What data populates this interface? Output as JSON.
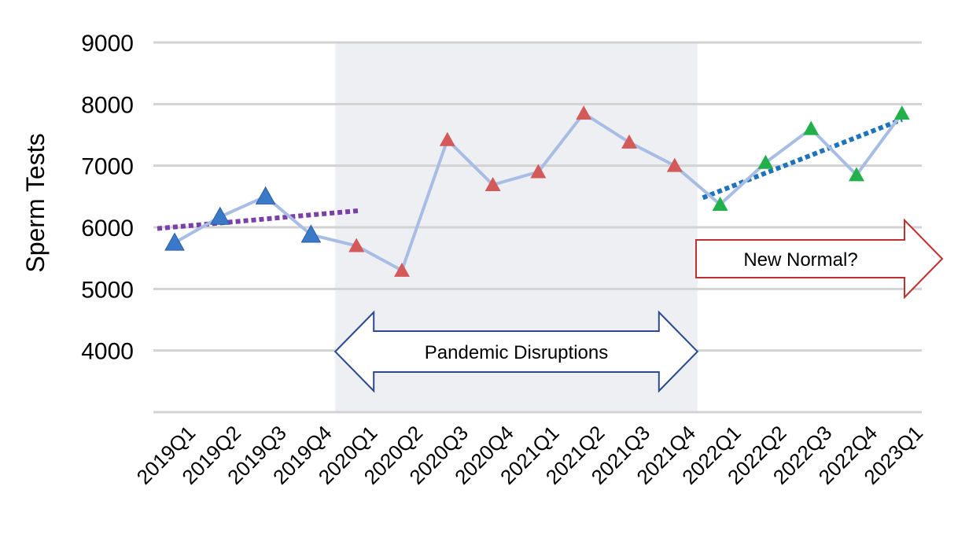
{
  "chart_data": {
    "type": "line",
    "title": "",
    "xlabel": "",
    "ylabel": "Sperm Tests",
    "ylim": [
      3000,
      9000
    ],
    "yticks": [
      4000,
      5000,
      6000,
      7000,
      8000,
      9000
    ],
    "grid": true,
    "categories": [
      "2019Q1",
      "2019Q2",
      "2019Q3",
      "2019Q4",
      "2020Q1",
      "2020Q2",
      "2020Q3",
      "2020Q4",
      "2021Q1",
      "2021Q2",
      "2021Q3",
      "2021Q4",
      "2022Q1",
      "2022Q2",
      "2022Q3",
      "2022Q4",
      "2023Q1"
    ],
    "values": [
      5750,
      6170,
      6500,
      5880,
      5700,
      5300,
      7420,
      6690,
      6900,
      7850,
      7380,
      7000,
      6370,
      7050,
      7600,
      6850,
      7850
    ],
    "colors": {
      "line": "#a8bde3",
      "pre_pandemic_marker": "#3a78c8",
      "pandemic_marker": "#d45a5a",
      "post_pandemic_marker": "#22b04a",
      "pre_trend": "#7b3fa8",
      "post_trend": "#1e73be",
      "shade": "#eeeff3",
      "grid": "#d3d3d3",
      "pandemic_arrow": "#2b4a8f",
      "new_normal_arrow": "#c0302e"
    },
    "segments": [
      {
        "from": "2019Q1",
        "to": "2019Q4",
        "marker_color": "#3a78c8"
      },
      {
        "from": "2020Q1",
        "to": "2021Q4",
        "marker_color": "#d45a5a"
      },
      {
        "from": "2022Q1",
        "to": "2023Q1",
        "marker_color": "#22b04a"
      }
    ],
    "trend_lines": [
      {
        "from_x": "2019Q1",
        "from_y": 5980,
        "to_x": "2020Q1",
        "to_y": 6270,
        "color": "#7b3fa8"
      },
      {
        "from_x": "2022Q1",
        "from_y": 6480,
        "to_x": "2023Q1",
        "to_y": 7750,
        "color": "#1e73be"
      }
    ],
    "shaded_region": {
      "from": "2020Q1",
      "to": "2021Q4"
    },
    "annotations": {
      "pandemic": "Pandemic Disruptions",
      "new_normal": "New Normal?"
    }
  }
}
